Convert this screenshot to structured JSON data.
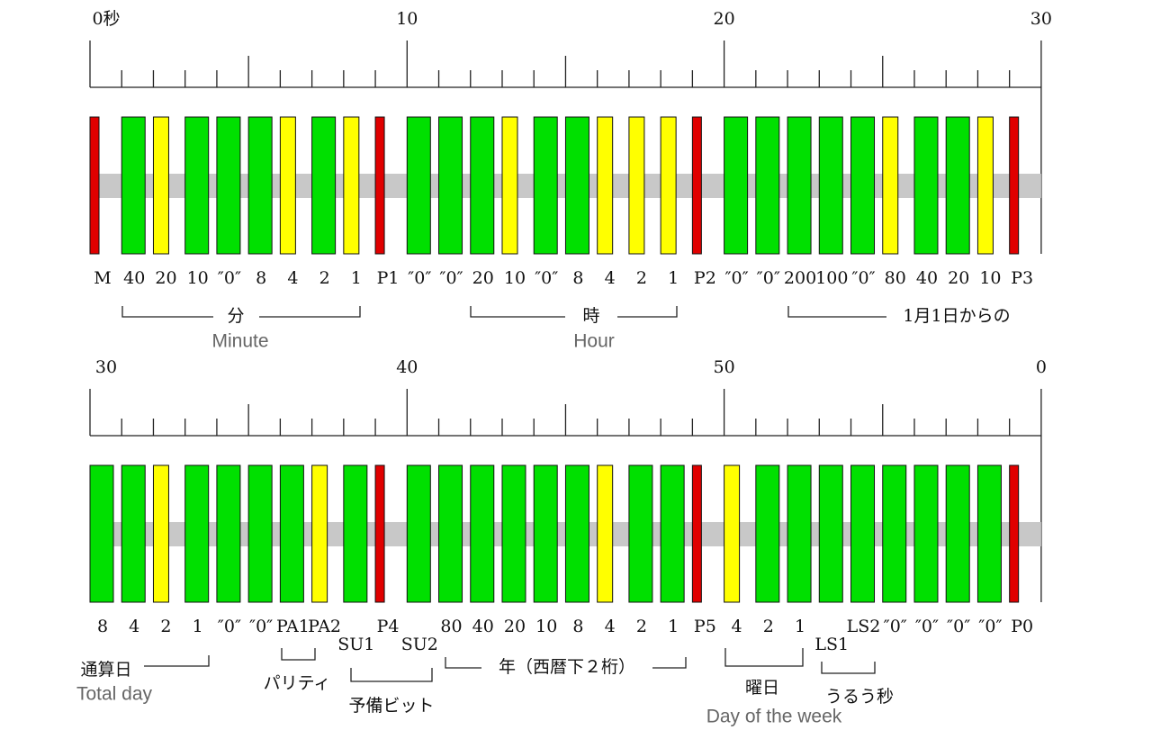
{
  "rows": [
    {
      "ruler": [
        "0秒",
        "10",
        "20",
        "30"
      ],
      "bits": [
        {
          "label": "M",
          "color": "#e00000"
        },
        {
          "label": "40",
          "color": "#00e000"
        },
        {
          "label": "20",
          "color": "#ffff00"
        },
        {
          "label": "10",
          "color": "#00e000"
        },
        {
          "label": "″0″",
          "color": "#00e000"
        },
        {
          "label": "8",
          "color": "#00e000"
        },
        {
          "label": "4",
          "color": "#ffff00"
        },
        {
          "label": "2",
          "color": "#00e000"
        },
        {
          "label": "1",
          "color": "#ffff00"
        },
        {
          "label": "P1",
          "color": "#e00000"
        },
        {
          "label": "″0″",
          "color": "#00e000"
        },
        {
          "label": "″0″",
          "color": "#00e000"
        },
        {
          "label": "20",
          "color": "#00e000"
        },
        {
          "label": "10",
          "color": "#ffff00"
        },
        {
          "label": "″0″",
          "color": "#00e000"
        },
        {
          "label": "8",
          "color": "#00e000"
        },
        {
          "label": "4",
          "color": "#ffff00"
        },
        {
          "label": "2",
          "color": "#ffff00"
        },
        {
          "label": "1",
          "color": "#ffff00"
        },
        {
          "label": "P2",
          "color": "#e00000"
        },
        {
          "label": "″0″",
          "color": "#00e000"
        },
        {
          "label": "″0″",
          "color": "#00e000"
        },
        {
          "label": "200",
          "color": "#00e000"
        },
        {
          "label": "100",
          "color": "#00e000"
        },
        {
          "label": "″0″",
          "color": "#00e000"
        },
        {
          "label": "80",
          "color": "#ffff00"
        },
        {
          "label": "40",
          "color": "#00e000"
        },
        {
          "label": "20",
          "color": "#00e000"
        },
        {
          "label": "10",
          "color": "#ffff00"
        },
        {
          "label": "P3",
          "color": "#e00000"
        }
      ],
      "groups": [
        {
          "label": "分",
          "sublabel": "Minute"
        },
        {
          "label": "時",
          "sublabel": "Hour"
        },
        {
          "label": "1月1日からの"
        }
      ]
    },
    {
      "ruler": [
        "30",
        "40",
        "50",
        "0"
      ],
      "bits": [
        {
          "label": "8",
          "color": "#00e000"
        },
        {
          "label": "4",
          "color": "#00e000"
        },
        {
          "label": "2",
          "color": "#ffff00"
        },
        {
          "label": "1",
          "color": "#00e000"
        },
        {
          "label": "″0″",
          "color": "#00e000"
        },
        {
          "label": "″0″",
          "color": "#00e000"
        },
        {
          "label": "PA1",
          "color": "#00e000"
        },
        {
          "label": "PA2",
          "color": "#ffff00"
        },
        {
          "label": "SU1",
          "color": "#00e000"
        },
        {
          "label": "P4",
          "color": "#e00000"
        },
        {
          "label": "SU2",
          "color": "#00e000"
        },
        {
          "label": "80",
          "color": "#00e000"
        },
        {
          "label": "40",
          "color": "#00e000"
        },
        {
          "label": "20",
          "color": "#00e000"
        },
        {
          "label": "10",
          "color": "#00e000"
        },
        {
          "label": "8",
          "color": "#00e000"
        },
        {
          "label": "4",
          "color": "#ffff00"
        },
        {
          "label": "2",
          "color": "#00e000"
        },
        {
          "label": "1",
          "color": "#00e000"
        },
        {
          "label": "P5",
          "color": "#e00000"
        },
        {
          "label": "4",
          "color": "#ffff00"
        },
        {
          "label": "2",
          "color": "#00e000"
        },
        {
          "label": "1",
          "color": "#00e000"
        },
        {
          "label": "LS1",
          "color": "#00e000"
        },
        {
          "label": "LS2",
          "color": "#00e000"
        },
        {
          "label": "″0″",
          "color": "#00e000"
        },
        {
          "label": "″0″",
          "color": "#00e000"
        },
        {
          "label": "″0″",
          "color": "#00e000"
        },
        {
          "label": "″0″",
          "color": "#00e000"
        },
        {
          "label": "P0",
          "color": "#e00000"
        }
      ],
      "groups": [
        {
          "label": "通算日",
          "sublabel": "Total day"
        },
        {
          "label": "パリティ"
        },
        {
          "label": "予備ビット"
        },
        {
          "label": "年（西暦下２桁）"
        },
        {
          "label": "曜日",
          "sublabel": "Day of the week"
        },
        {
          "label": "うるう秒"
        }
      ]
    }
  ]
}
